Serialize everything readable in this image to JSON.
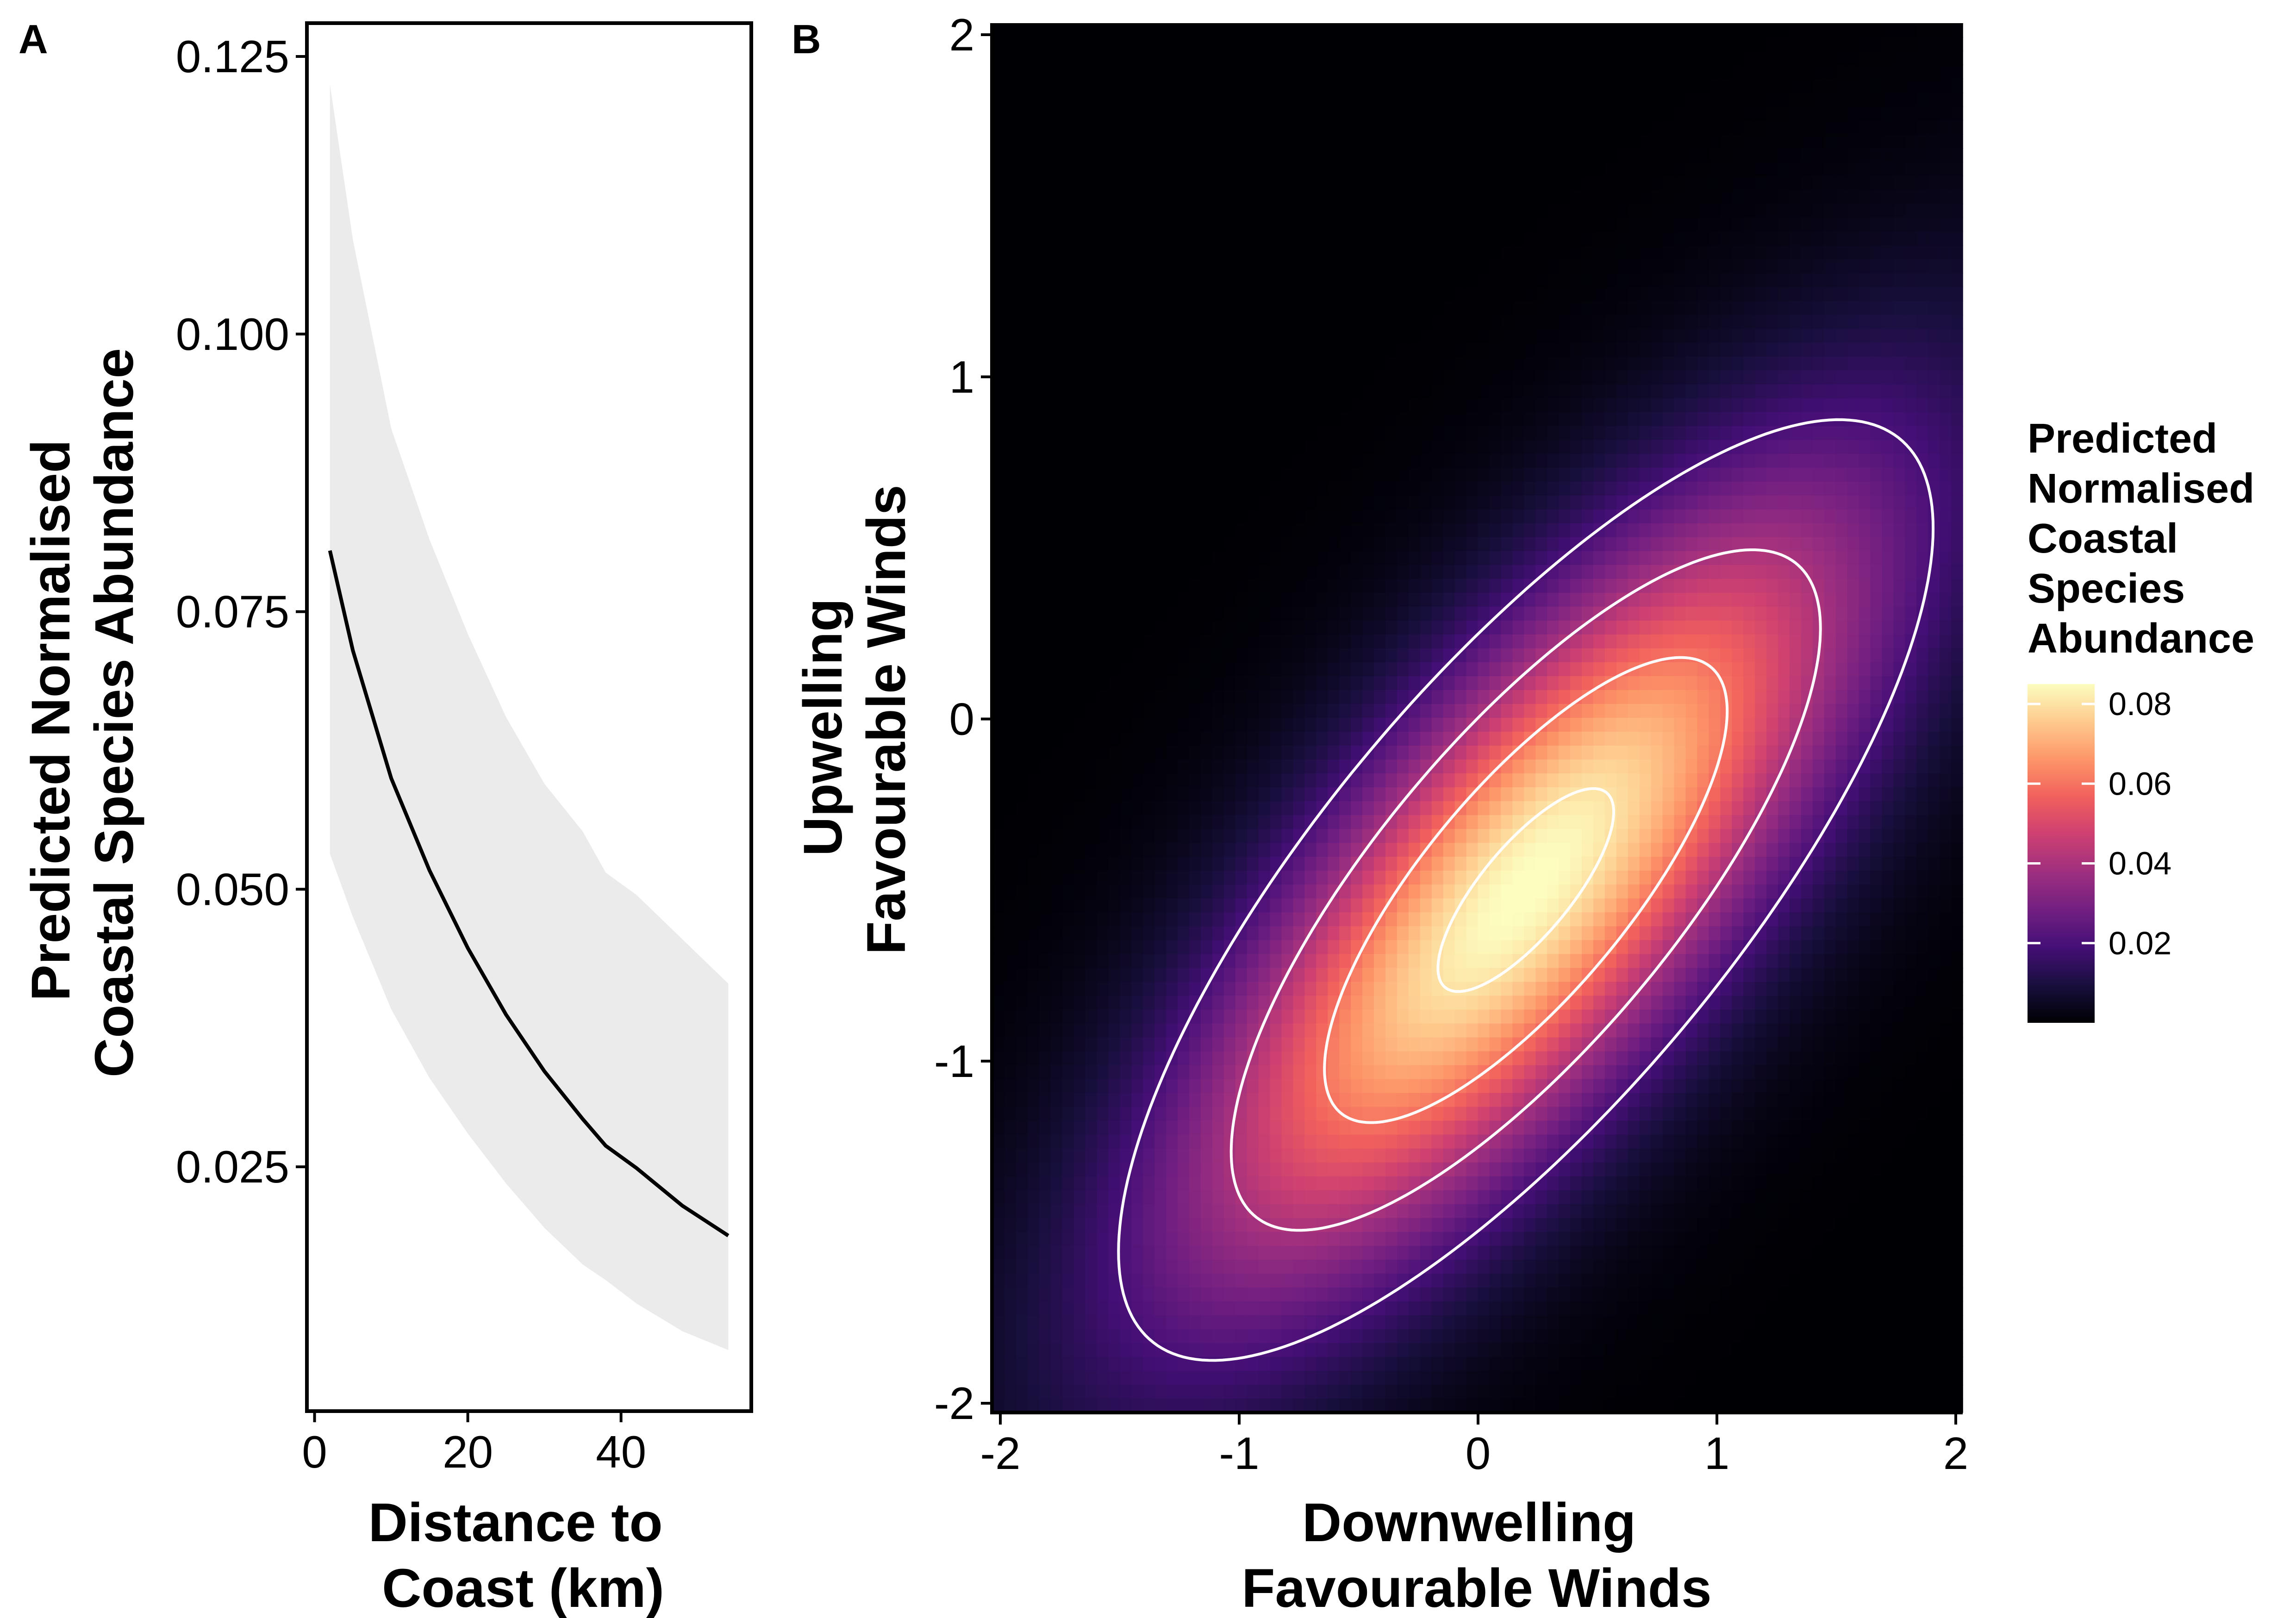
{
  "chart_data": [
    {
      "panel": "A",
      "type": "line",
      "xlabel_lines": [
        "Distance to",
        "Coast (km)"
      ],
      "ylabel_lines": [
        "Predicted Normalised",
        "Coastal Species Abundance"
      ],
      "xlim": [
        -1,
        57
      ],
      "ylim": [
        0.003,
        0.128
      ],
      "xticks": [
        0,
        20,
        40
      ],
      "xtick_labels": [
        "0",
        "20",
        "40"
      ],
      "yticks": [
        0.025,
        0.05,
        0.075,
        0.1,
        0.125
      ],
      "ytick_labels": [
        "0.025",
        "0.050",
        "0.075",
        "0.100",
        "0.125"
      ],
      "grid": false,
      "series": [
        {
          "x": [
            2,
            5,
            10,
            15,
            20,
            25,
            30,
            35,
            38,
            42,
            48,
            54
          ],
          "values": [
            0.0805,
            0.0715,
            0.06,
            0.0517,
            0.0447,
            0.0387,
            0.0336,
            0.0293,
            0.0269,
            0.0249,
            0.0215,
            0.0188
          ],
          "ci_lower": [
            0.0532,
            0.0475,
            0.0392,
            0.033,
            0.028,
            0.0235,
            0.0195,
            0.0162,
            0.0148,
            0.0127,
            0.0102,
            0.0085
          ],
          "ci_upper": [
            0.1225,
            0.1085,
            0.0915,
            0.0815,
            0.073,
            0.0655,
            0.0595,
            0.0552,
            0.0515,
            0.0495,
            0.0455,
            0.0415
          ],
          "line_color": "#000000",
          "band_color": "#ebebeb"
        }
      ]
    },
    {
      "panel": "B",
      "type": "heatmap",
      "xlabel_lines": [
        "Downwelling",
        "Favourable Winds"
      ],
      "ylabel_lines": [
        "Upwelling",
        "Favourable Winds"
      ],
      "xlim": [
        -2,
        2
      ],
      "ylim": [
        -2,
        2
      ],
      "xticks": [
        -2,
        -1,
        0,
        1,
        2
      ],
      "xtick_labels": [
        "-2",
        "-1",
        "0",
        "1",
        "2"
      ],
      "yticks": [
        -2,
        -1,
        0,
        1,
        2
      ],
      "ytick_labels": [
        "-2",
        "-1",
        "0",
        "1",
        "2"
      ],
      "grid": false,
      "colormap": "magma",
      "color_stops": [
        "#000004",
        "#180f3d",
        "#440f76",
        "#721f81",
        "#9e2f7f",
        "#cd4071",
        "#f1605d",
        "#fd9668",
        "#feca8d",
        "#fcfdbf"
      ],
      "surface": {
        "peak": 0.0856,
        "peak_at": [
          0.2,
          -0.5
        ],
        "cov": [
          [
            1.0,
            0.62
          ],
          [
            0.62,
            0.65
          ]
        ]
      },
      "contour_levels": [
        0.08,
        0.06,
        0.04,
        0.02
      ],
      "contour_color": "#ffffff",
      "legend": {
        "title_lines": [
          "Predicted",
          "Normalised",
          "Coastal",
          "Species",
          "Abundance"
        ],
        "range": [
          0.0,
          0.085
        ],
        "ticks": [
          0.02,
          0.04,
          0.06,
          0.08
        ],
        "tick_labels": [
          "0.02",
          "0.04",
          "0.06",
          "0.08"
        ],
        "placement": "right"
      }
    }
  ]
}
